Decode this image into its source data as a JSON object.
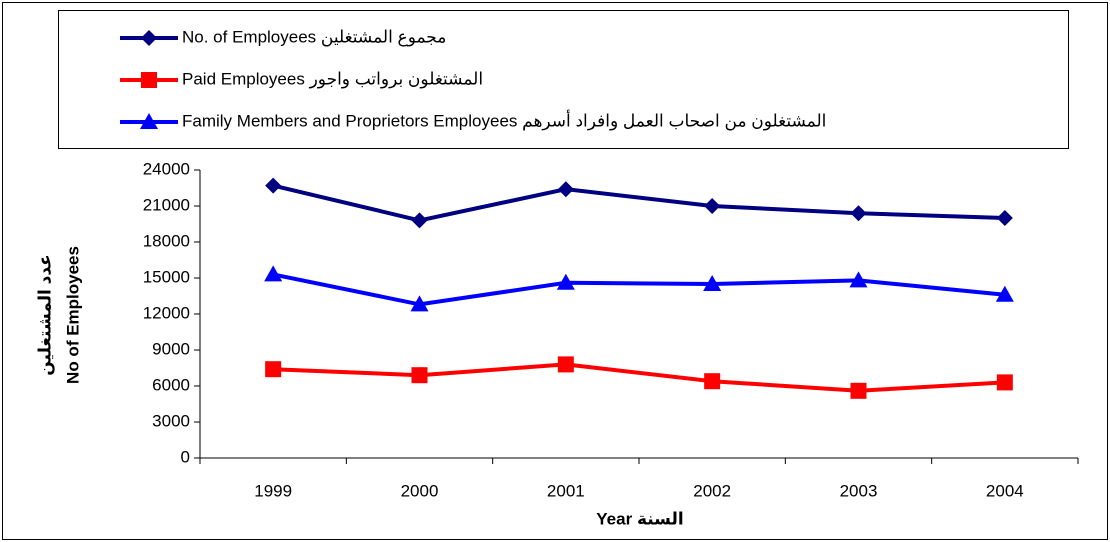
{
  "chart_data": {
    "type": "line",
    "x_label": "Year  السنة",
    "y_label": [
      "عدد المشتغلين",
      "No of Employees"
    ],
    "categories": [
      "1999",
      "2000",
      "2001",
      "2002",
      "2003",
      "2004"
    ],
    "series": [
      {
        "name": "No. of Employees  مجموع المشتغلين",
        "color": "#000080",
        "marker": "diamond",
        "values": [
          22700,
          19800,
          22400,
          21000,
          20400,
          20000
        ]
      },
      {
        "name": "Paid Employees  المشتغلون برواتب واجور",
        "color": "#ff0000",
        "marker": "square",
        "values": [
          7400,
          6900,
          7800,
          6400,
          5600,
          6300
        ]
      },
      {
        "name": "Family Members and Proprietors  Employees  المشتغلون من اصحاب العمل وافراد أسرهم",
        "color": "#0000ff",
        "marker": "triangle",
        "values": [
          15300,
          12800,
          14600,
          14500,
          14800,
          13600
        ]
      }
    ],
    "ylim": [
      0,
      24000
    ],
    "yticks": [
      0,
      3000,
      6000,
      9000,
      12000,
      15000,
      18000,
      21000,
      24000
    ],
    "legend": "top"
  }
}
